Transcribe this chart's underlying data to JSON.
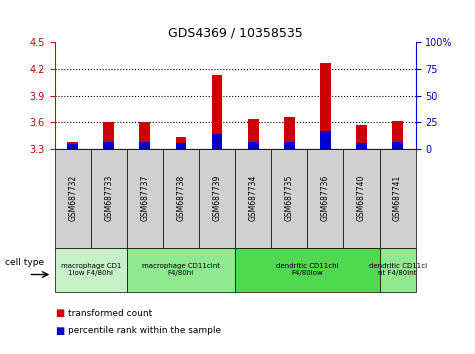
{
  "title": "GDS4369 / 10358535",
  "samples": [
    "GSM687732",
    "GSM687733",
    "GSM687737",
    "GSM687738",
    "GSM687739",
    "GSM687734",
    "GSM687735",
    "GSM687736",
    "GSM687740",
    "GSM687741"
  ],
  "red_values": [
    3.38,
    3.6,
    3.6,
    3.43,
    4.13,
    3.64,
    3.66,
    4.27,
    3.57,
    3.61
  ],
  "blue_values_pct": [
    4,
    6,
    6,
    5,
    14,
    6,
    6,
    17,
    5,
    6
  ],
  "ylim_left": [
    3.3,
    4.5
  ],
  "ylim_right": [
    0,
    100
  ],
  "yticks_left": [
    3.3,
    3.6,
    3.9,
    4.2,
    4.5
  ],
  "yticks_right": [
    0,
    25,
    50,
    75,
    100
  ],
  "ytick_labels_right": [
    "0",
    "25",
    "50",
    "75",
    "100%"
  ],
  "grid_lines": [
    3.6,
    3.9,
    4.2
  ],
  "cell_groups": [
    {
      "label": "macrophage CD1\n1low F4/80hi",
      "start": 0,
      "end": 2,
      "color": "#c8f0c8"
    },
    {
      "label": "macrophage CD11cint\nF4/80hi",
      "start": 2,
      "end": 5,
      "color": "#90e890"
    },
    {
      "label": "dendritic CD11chi\nF4/80low",
      "start": 5,
      "end": 9,
      "color": "#50d850"
    },
    {
      "label": "dendritic CD11ci\nnt F4/80int",
      "start": 9,
      "end": 10,
      "color": "#90e890"
    }
  ],
  "red_color": "#cc0000",
  "blue_color": "#0000cc",
  "legend_red": "transformed count",
  "legend_blue": "percentile rank within the sample",
  "cell_type_label": "cell type",
  "base_value": 3.3
}
